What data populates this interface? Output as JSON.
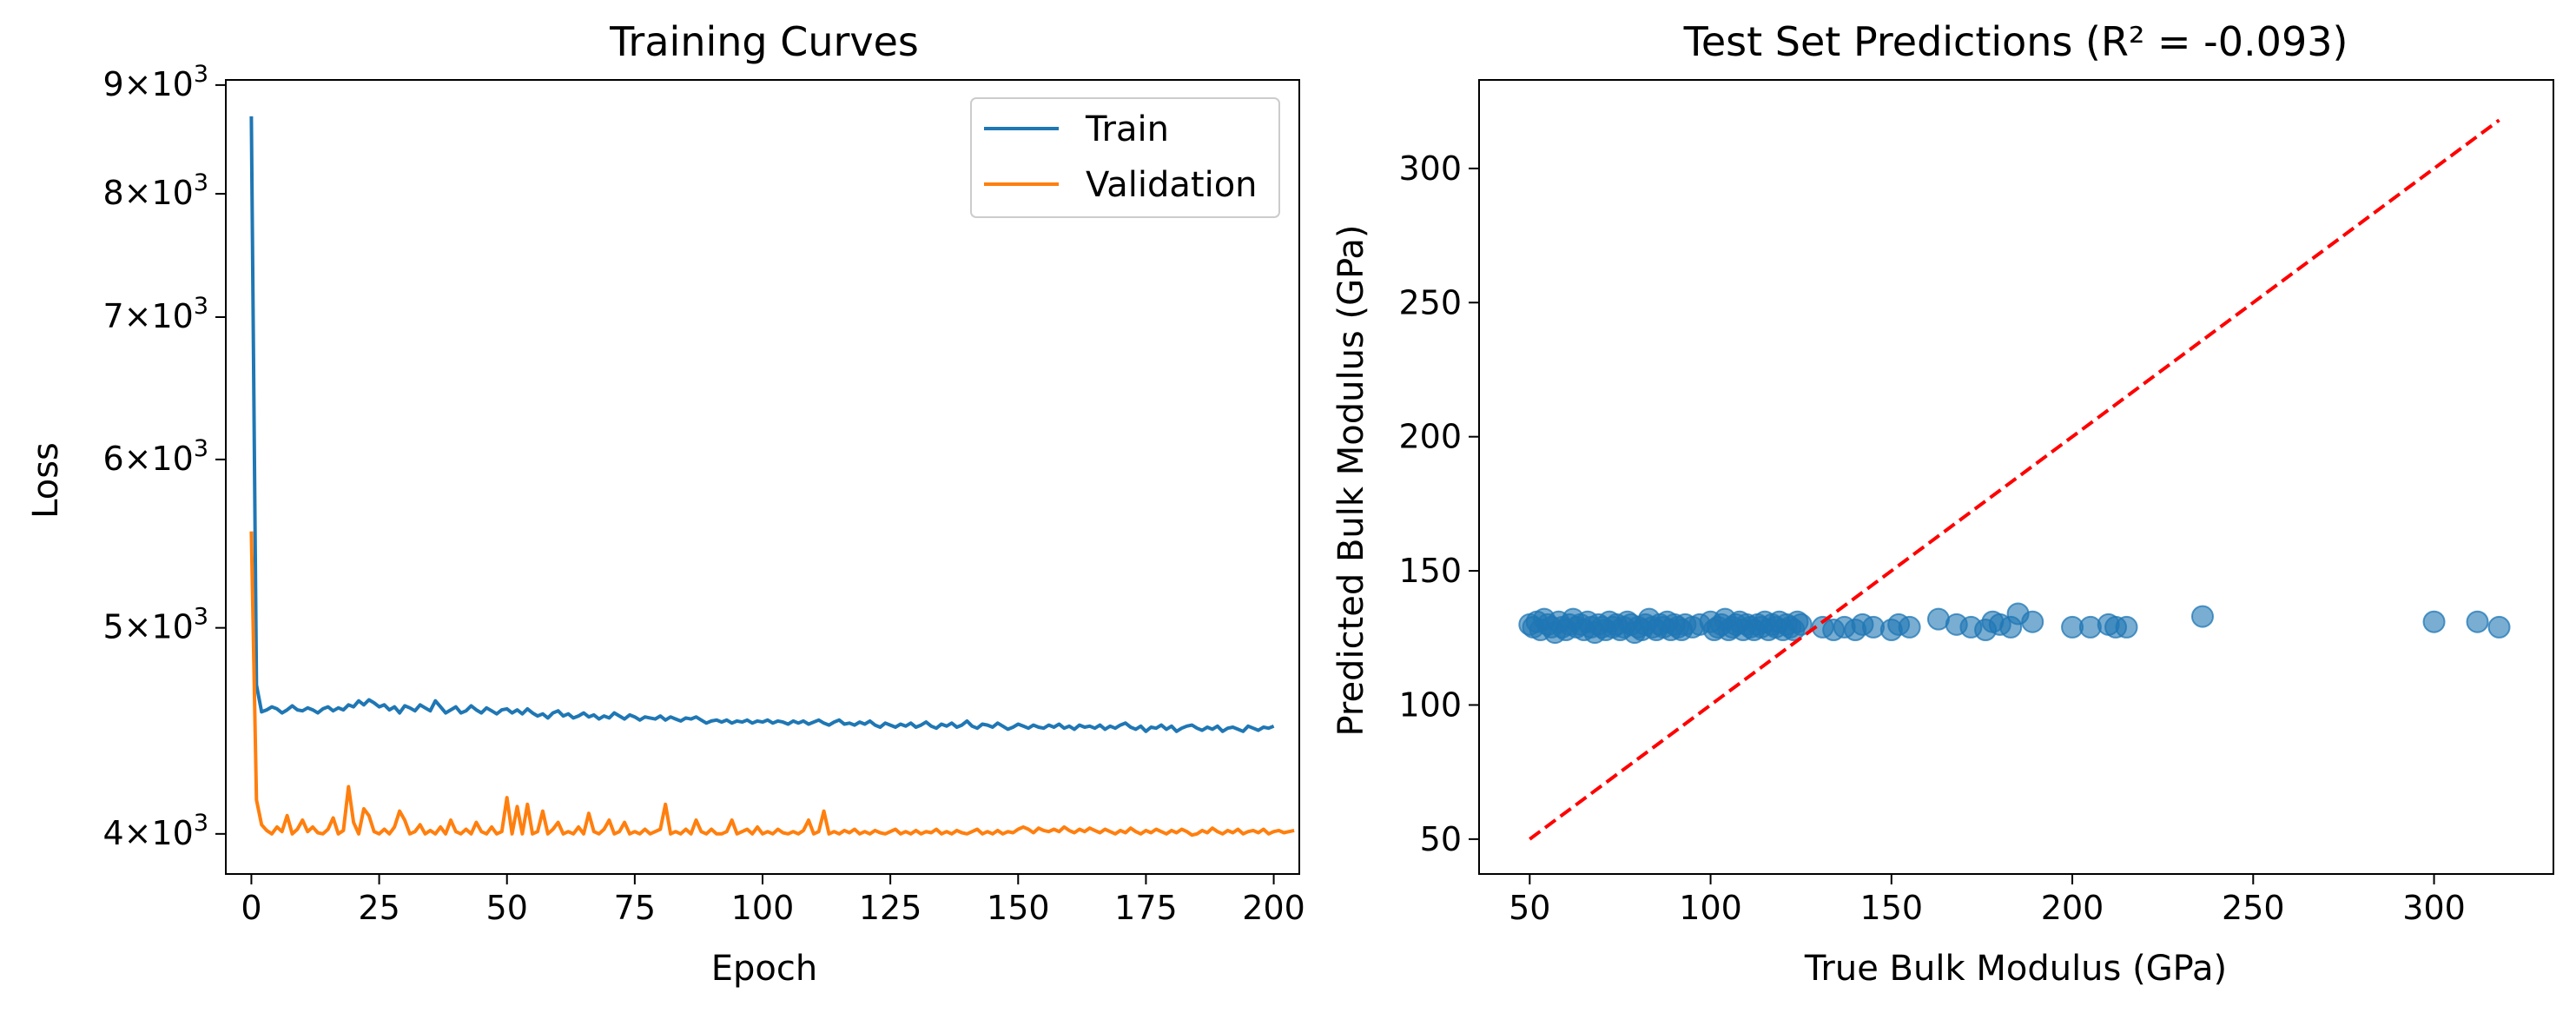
{
  "chart_data": [
    {
      "type": "line",
      "title": "Training Curves",
      "xlabel": "Epoch",
      "ylabel": "Loss",
      "yscale": "log",
      "xlim": [
        -5,
        205
      ],
      "ylim": [
        3830,
        9050
      ],
      "grid": false,
      "legend_position": "top-right",
      "xticks": [
        0,
        25,
        50,
        75,
        100,
        125,
        150,
        175,
        200
      ],
      "yticks": [
        {
          "value": 4000,
          "mantissa": "4",
          "base": "10",
          "exp": "3"
        },
        {
          "value": 5000,
          "mantissa": "5",
          "base": "10",
          "exp": "3"
        },
        {
          "value": 6000,
          "mantissa": "6",
          "base": "10",
          "exp": "3"
        },
        {
          "value": 7000,
          "mantissa": "7",
          "base": "10",
          "exp": "3"
        },
        {
          "value": 8000,
          "mantissa": "8",
          "base": "10",
          "exp": "3"
        },
        {
          "value": 9000,
          "mantissa": "9",
          "base": "10",
          "exp": "3"
        }
      ],
      "series": [
        {
          "name": "Train",
          "color": "#1f77b4",
          "values": [
            8700,
            4700,
            4565,
            4575,
            4590,
            4580,
            4560,
            4575,
            4595,
            4575,
            4570,
            4585,
            4575,
            4560,
            4580,
            4590,
            4570,
            4585,
            4575,
            4600,
            4590,
            4620,
            4600,
            4625,
            4610,
            4590,
            4600,
            4575,
            4590,
            4560,
            4595,
            4585,
            4570,
            4600,
            4585,
            4570,
            4620,
            4590,
            4560,
            4575,
            4590,
            4560,
            4570,
            4595,
            4575,
            4560,
            4585,
            4570,
            4555,
            4575,
            4580,
            4560,
            4575,
            4555,
            4580,
            4560,
            4545,
            4555,
            4535,
            4560,
            4570,
            4545,
            4555,
            4535,
            4545,
            4560,
            4540,
            4550,
            4530,
            4545,
            4535,
            4560,
            4545,
            4530,
            4550,
            4540,
            4525,
            4540,
            4535,
            4530,
            4545,
            4525,
            4540,
            4530,
            4520,
            4535,
            4530,
            4540,
            4525,
            4510,
            4520,
            4525,
            4515,
            4525,
            4510,
            4520,
            4515,
            4525,
            4510,
            4520,
            4515,
            4525,
            4510,
            4520,
            4515,
            4505,
            4520,
            4510,
            4520,
            4505,
            4515,
            4525,
            4510,
            4500,
            4515,
            4525,
            4505,
            4510,
            4500,
            4515,
            4505,
            4520,
            4500,
            4490,
            4510,
            4500,
            4490,
            4505,
            4495,
            4510,
            4490,
            4500,
            4515,
            4495,
            4485,
            4505,
            4495,
            4510,
            4490,
            4500,
            4520,
            4495,
            4485,
            4505,
            4500,
            4490,
            4510,
            4495,
            4480,
            4490,
            4505,
            4495,
            4485,
            4500,
            4490,
            4485,
            4500,
            4490,
            4505,
            4485,
            4495,
            4480,
            4500,
            4490,
            4495,
            4485,
            4500,
            4480,
            4495,
            4485,
            4500,
            4510,
            4490,
            4480,
            4495,
            4470,
            4490,
            4485,
            4500,
            4480,
            4495,
            4470,
            4485,
            4495,
            4500,
            4485,
            4475,
            4490,
            4480,
            4495,
            4470,
            4485,
            4490,
            4480,
            4470,
            4495,
            4485,
            4475,
            4490,
            4485,
            4495
          ]
        },
        {
          "name": "Validation",
          "color": "#ff7f0e",
          "values": [
            5550,
            4150,
            4040,
            4015,
            4000,
            4030,
            4010,
            4080,
            4000,
            4020,
            4060,
            4010,
            4030,
            4005,
            4000,
            4020,
            4070,
            4000,
            4015,
            4210,
            4050,
            4000,
            4110,
            4080,
            4010,
            4000,
            4020,
            4000,
            4030,
            4100,
            4060,
            4000,
            4010,
            4040,
            4000,
            4015,
            4000,
            4030,
            4000,
            4060,
            4010,
            4000,
            4020,
            4000,
            4050,
            4010,
            4000,
            4030,
            4000,
            4010,
            4160,
            4000,
            4120,
            4000,
            4130,
            4000,
            4010,
            4100,
            4000,
            4020,
            4050,
            4000,
            4010,
            4000,
            4030,
            4000,
            4090,
            4010,
            4000,
            4020,
            4060,
            4000,
            4010,
            4050,
            4000,
            4010,
            4000,
            4020,
            4000,
            4010,
            4020,
            4130,
            4000,
            4010,
            4000,
            4020,
            4000,
            4060,
            4010,
            4000,
            4020,
            4000,
            4000,
            4010,
            4060,
            4000,
            4010,
            4020,
            4000,
            4030,
            4000,
            4010,
            4000,
            4020,
            4005,
            4000,
            4010,
            4000,
            4015,
            4060,
            4000,
            4010,
            4100,
            4000,
            4010,
            4000,
            4015,
            4005,
            4020,
            4000,
            4010,
            4000,
            4015,
            4005,
            4000,
            4010,
            4020,
            4000,
            4010,
            4000,
            4015,
            4000,
            4010,
            4005,
            4020,
            4000,
            4010,
            4000,
            4015,
            4005,
            4000,
            4010,
            4020,
            4000,
            4010,
            4000,
            4015,
            4000,
            4010,
            4005,
            4020,
            4030,
            4020,
            4005,
            4025,
            4015,
            4010,
            4020,
            4010,
            4030,
            4015,
            4005,
            4020,
            4010,
            4025,
            4015,
            4005,
            4020,
            4010,
            4000,
            4015,
            4005,
            4025,
            4010,
            4000,
            4015,
            4005,
            4020,
            4010,
            4000,
            4015,
            4005,
            4020,
            4010,
            3995,
            4000,
            4015,
            4005,
            4025,
            4010,
            4000,
            4015,
            4005,
            4020,
            4000,
            4010,
            4015,
            4005,
            4020,
            4000,
            4010,
            4015,
            4005,
            4010,
            4015
          ]
        }
      ]
    },
    {
      "type": "scatter",
      "title": "Test Set Predictions (R² = -0.093)",
      "xlabel": "True Bulk Modulus (GPa)",
      "ylabel": "Predicted Bulk Modulus (GPa)",
      "xlim": [
        36,
        333
      ],
      "ylim": [
        37,
        333
      ],
      "grid": false,
      "xticks": [
        50,
        100,
        150,
        200,
        250,
        300
      ],
      "yticks": [
        50,
        100,
        150,
        200,
        250,
        300
      ],
      "reference_line": {
        "from": [
          50,
          50
        ],
        "to": [
          318,
          318
        ],
        "color": "#ff0000",
        "style": "dashed"
      },
      "marker_color": "#1f77b4",
      "points": {
        "x": [
          50,
          51,
          52,
          53,
          54,
          55,
          56,
          57,
          58,
          59,
          60,
          61,
          62,
          63,
          64,
          65,
          66,
          67,
          68,
          69,
          70,
          71,
          72,
          73,
          74,
          75,
          76,
          77,
          78,
          79,
          80,
          81,
          82,
          83,
          84,
          85,
          86,
          87,
          88,
          89,
          90,
          91,
          92,
          93,
          95,
          97,
          100,
          101,
          102,
          103,
          104,
          105,
          106,
          107,
          108,
          109,
          110,
          111,
          112,
          113,
          114,
          115,
          116,
          117,
          118,
          119,
          120,
          121,
          122,
          123,
          124,
          125,
          131,
          134,
          137,
          140,
          142,
          145,
          150,
          152,
          155,
          163,
          168,
          172,
          176,
          178,
          180,
          183,
          185,
          189,
          200,
          205,
          210,
          212,
          215,
          236,
          300,
          312,
          318
        ],
        "y": [
          130,
          129,
          131,
          128,
          132,
          130,
          129,
          127,
          131,
          129,
          128,
          130,
          132,
          129,
          130,
          128,
          131,
          129,
          127,
          130,
          129,
          128,
          131,
          129,
          130,
          128,
          129,
          131,
          130,
          127,
          129,
          128,
          130,
          132,
          129,
          128,
          130,
          129,
          131,
          128,
          130,
          129,
          128,
          130,
          129,
          130,
          131,
          128,
          129,
          130,
          132,
          128,
          129,
          130,
          131,
          128,
          130,
          129,
          128,
          130,
          129,
          131,
          128,
          130,
          129,
          131,
          128,
          130,
          129,
          128,
          131,
          130,
          129,
          128,
          129,
          128,
          130,
          129,
          128,
          130,
          129,
          132,
          130,
          129,
          128,
          131,
          130,
          129,
          134,
          131,
          129,
          129,
          130,
          129,
          129,
          133,
          131,
          131,
          129
        ]
      }
    }
  ]
}
